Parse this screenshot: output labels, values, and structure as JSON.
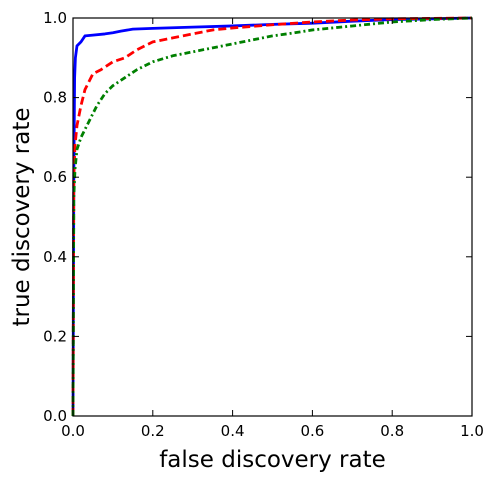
{
  "chart_data": {
    "type": "line",
    "title": "",
    "xlabel": "false discovery rate",
    "ylabel": "true discovery rate",
    "xlim": [
      0.0,
      1.0
    ],
    "ylim": [
      0.0,
      1.0
    ],
    "xticks": [
      "0.0",
      "0.2",
      "0.4",
      "0.6",
      "0.8",
      "1.0"
    ],
    "yticks": [
      "0.0",
      "0.2",
      "0.4",
      "0.6",
      "0.8",
      "1.0"
    ],
    "grid": false,
    "legend": "none",
    "series": [
      {
        "color": "#0000ff",
        "style": "solid",
        "x": [
          0.0,
          0.002,
          0.004,
          0.006,
          0.01,
          0.02,
          0.03,
          0.05,
          0.08,
          0.1,
          0.12,
          0.15,
          0.2,
          0.3,
          0.4,
          0.5,
          0.6,
          0.7,
          0.8,
          0.9,
          1.0
        ],
        "y": [
          0.0,
          0.6,
          0.85,
          0.9,
          0.93,
          0.94,
          0.955,
          0.957,
          0.96,
          0.963,
          0.967,
          0.972,
          0.974,
          0.977,
          0.98,
          0.984,
          0.987,
          0.992,
          0.996,
          0.998,
          1.0
        ]
      },
      {
        "color": "#ff0000",
        "style": "dashed",
        "x": [
          0.0,
          0.002,
          0.005,
          0.01,
          0.02,
          0.03,
          0.05,
          0.07,
          0.1,
          0.13,
          0.16,
          0.2,
          0.25,
          0.3,
          0.35,
          0.4,
          0.5,
          0.6,
          0.7,
          0.8,
          0.9,
          1.0
        ],
        "y": [
          0.0,
          0.6,
          0.68,
          0.73,
          0.78,
          0.82,
          0.86,
          0.87,
          0.89,
          0.9,
          0.92,
          0.94,
          0.95,
          0.96,
          0.97,
          0.975,
          0.983,
          0.99,
          0.995,
          0.998,
          0.999,
          1.0
        ]
      },
      {
        "color": "#008000",
        "style": "dashdot",
        "x": [
          0.0,
          0.002,
          0.005,
          0.01,
          0.02,
          0.04,
          0.06,
          0.08,
          0.1,
          0.13,
          0.16,
          0.2,
          0.25,
          0.3,
          0.35,
          0.4,
          0.45,
          0.5,
          0.55,
          0.6,
          0.7,
          0.8,
          0.9,
          1.0
        ],
        "y": [
          0.0,
          0.55,
          0.62,
          0.67,
          0.7,
          0.74,
          0.78,
          0.81,
          0.83,
          0.85,
          0.87,
          0.89,
          0.905,
          0.915,
          0.925,
          0.935,
          0.945,
          0.955,
          0.962,
          0.97,
          0.98,
          0.99,
          0.996,
          1.0
        ]
      }
    ]
  }
}
